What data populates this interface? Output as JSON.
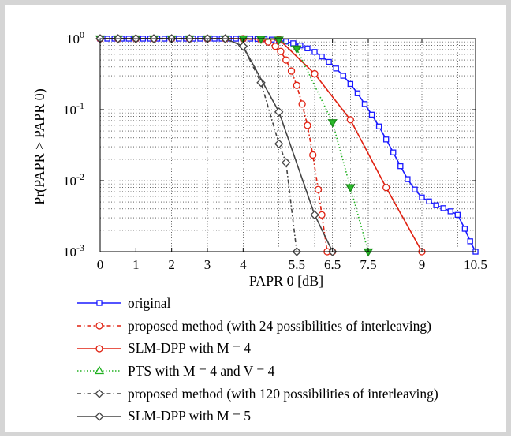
{
  "chart_data": {
    "type": "line",
    "ylabel": "Pr(PAPR > PAPR 0)",
    "xlabel": "PAPR 0 [dB]",
    "xlim": [
      0,
      10.5
    ],
    "ylim": [
      0.001,
      1
    ],
    "yscale": "log",
    "grid": true,
    "legend_position": "below",
    "x_ticks": [
      "0",
      "1",
      "2",
      "3",
      "4",
      "5.5",
      "6.5",
      "7.5",
      "9",
      "10.5"
    ],
    "x_tick_values": [
      0,
      1,
      2,
      3,
      4,
      5.5,
      6.5,
      7.5,
      9,
      10.5
    ],
    "x_minor_grid": [
      5,
      6,
      7,
      8,
      10
    ],
    "y_ticks": [
      {
        "value": 1,
        "base": "10",
        "exp": "0"
      },
      {
        "value": 0.1,
        "base": "10",
        "exp": "-1"
      },
      {
        "value": 0.01,
        "base": "10",
        "exp": "-2"
      },
      {
        "value": 0.001,
        "base": "10",
        "exp": "-3"
      }
    ],
    "series": [
      {
        "name": "original",
        "color": "#1a1aff",
        "dash": "",
        "marker": "square",
        "points": [
          [
            0,
            1
          ],
          [
            0.2,
            1
          ],
          [
            0.4,
            1
          ],
          [
            0.6,
            1
          ],
          [
            0.8,
            1
          ],
          [
            1,
            1
          ],
          [
            1.2,
            1
          ],
          [
            1.4,
            1
          ],
          [
            1.6,
            1
          ],
          [
            1.8,
            1
          ],
          [
            2,
            1
          ],
          [
            2.2,
            1
          ],
          [
            2.4,
            1
          ],
          [
            2.6,
            1
          ],
          [
            2.8,
            1
          ],
          [
            3,
            1
          ],
          [
            3.2,
            1
          ],
          [
            3.4,
            1
          ],
          [
            3.6,
            1
          ],
          [
            3.8,
            1
          ],
          [
            4,
            1
          ],
          [
            4.2,
            1
          ],
          [
            4.4,
            0.99
          ],
          [
            4.6,
            0.98
          ],
          [
            4.8,
            0.97
          ],
          [
            5.0,
            0.94
          ],
          [
            5.2,
            0.91
          ],
          [
            5.4,
            0.86
          ],
          [
            5.6,
            0.8
          ],
          [
            5.8,
            0.73
          ],
          [
            6.0,
            0.65
          ],
          [
            6.2,
            0.56
          ],
          [
            6.4,
            0.47
          ],
          [
            6.6,
            0.38
          ],
          [
            6.8,
            0.3
          ],
          [
            7.0,
            0.23
          ],
          [
            7.2,
            0.17
          ],
          [
            7.4,
            0.12
          ],
          [
            7.6,
            0.085
          ],
          [
            7.8,
            0.058
          ],
          [
            8.0,
            0.038
          ],
          [
            8.2,
            0.025
          ],
          [
            8.4,
            0.016
          ],
          [
            8.6,
            0.0105
          ],
          [
            8.8,
            0.0075
          ],
          [
            9.0,
            0.0058
          ],
          [
            9.2,
            0.0051
          ],
          [
            9.4,
            0.0045
          ],
          [
            9.6,
            0.0041
          ],
          [
            9.8,
            0.0037
          ],
          [
            10.0,
            0.0033
          ],
          [
            10.2,
            0.0021
          ],
          [
            10.35,
            0.0014
          ],
          [
            10.5,
            0.001
          ]
        ]
      },
      {
        "name": "proposed method (with 24 possibilities of interleaving)",
        "color": "#e02010",
        "dash": "5,3,1.5,3",
        "marker": "circle",
        "points": [
          [
            0,
            1
          ],
          [
            0.5,
            1
          ],
          [
            1,
            1
          ],
          [
            1.5,
            1
          ],
          [
            2,
            1
          ],
          [
            2.5,
            1
          ],
          [
            3,
            1
          ],
          [
            3.5,
            1
          ],
          [
            4,
            1
          ],
          [
            4.5,
            0.96
          ],
          [
            4.7,
            0.9
          ],
          [
            4.9,
            0.78
          ],
          [
            5.05,
            0.66
          ],
          [
            5.2,
            0.5
          ],
          [
            5.35,
            0.35
          ],
          [
            5.5,
            0.22
          ],
          [
            5.65,
            0.12
          ],
          [
            5.8,
            0.06
          ],
          [
            5.95,
            0.023
          ],
          [
            6.1,
            0.0075
          ],
          [
            6.2,
            0.0033
          ],
          [
            6.35,
            0.001
          ],
          [
            6.5,
            0.001
          ]
        ]
      },
      {
        "name": "SLM-DPP with M = 4",
        "color": "#e02010",
        "dash": "",
        "marker": "circle",
        "points": [
          [
            0,
            1
          ],
          [
            0.5,
            1
          ],
          [
            1,
            1
          ],
          [
            1.5,
            1
          ],
          [
            2,
            1
          ],
          [
            2.5,
            1
          ],
          [
            3,
            1
          ],
          [
            3.5,
            1
          ],
          [
            4,
            1
          ],
          [
            5,
            0.98
          ],
          [
            6,
            0.32
          ],
          [
            7,
            0.072
          ],
          [
            8,
            0.008
          ],
          [
            9,
            0.001
          ]
        ]
      },
      {
        "name": "PTS with M = 4 and V = 4",
        "color": "#20b020",
        "dash": "1.5,2.5",
        "marker": "triangle",
        "points": [
          [
            0,
            1
          ],
          [
            0.5,
            1
          ],
          [
            1,
            1
          ],
          [
            1.5,
            1
          ],
          [
            2,
            1
          ],
          [
            2.5,
            1
          ],
          [
            3,
            1
          ],
          [
            3.5,
            1
          ],
          [
            4,
            1
          ],
          [
            4.5,
            0.99
          ],
          [
            5,
            0.96
          ],
          [
            5.5,
            0.72
          ],
          [
            6.5,
            0.066
          ],
          [
            7,
            0.008
          ],
          [
            7.5,
            0.001
          ]
        ]
      },
      {
        "name": "proposed method (with 120 possibilities of interleaving)",
        "color": "#444444",
        "dash": "5,3,1.5,3",
        "marker": "diamond",
        "points": [
          [
            0,
            1
          ],
          [
            0.5,
            1
          ],
          [
            1,
            1
          ],
          [
            1.5,
            1
          ],
          [
            2,
            1
          ],
          [
            2.5,
            1
          ],
          [
            3,
            1
          ],
          [
            3.5,
            1
          ],
          [
            4,
            0.78
          ],
          [
            4.5,
            0.24
          ],
          [
            5.0,
            0.033
          ],
          [
            5.2,
            0.018
          ],
          [
            5.5,
            0.001
          ]
        ]
      },
      {
        "name": "SLM-DPP with M = 5",
        "color": "#444444",
        "dash": "",
        "marker": "diamond",
        "points": [
          [
            0,
            1
          ],
          [
            0.5,
            1
          ],
          [
            1,
            1
          ],
          [
            1.5,
            1
          ],
          [
            2,
            1
          ],
          [
            2.5,
            1
          ],
          [
            3,
            1
          ],
          [
            3.5,
            1
          ],
          [
            4,
            0.78
          ],
          [
            5,
            0.093
          ],
          [
            6,
            0.0033
          ],
          [
            6.5,
            0.001
          ]
        ]
      }
    ]
  }
}
